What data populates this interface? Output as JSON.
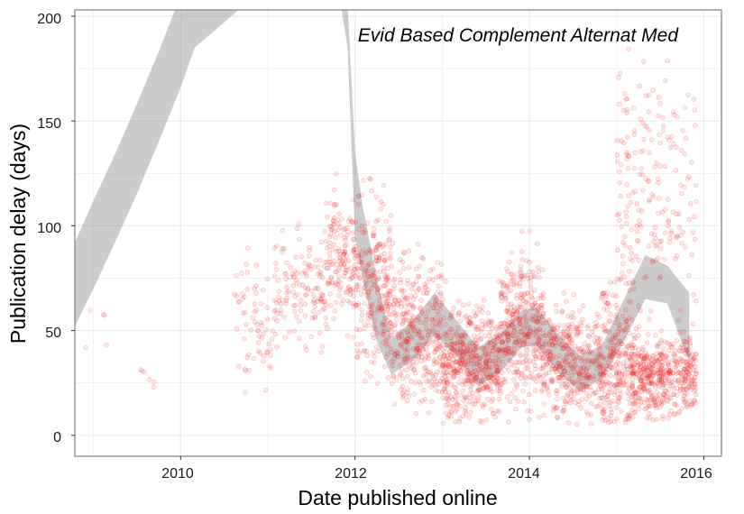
{
  "chart_data": {
    "type": "scatter",
    "title": "Evid Based Complement Alternat Med",
    "xlabel": "Date published online",
    "ylabel": "Publication delay (days)",
    "x_ticks": [
      "2010",
      "2012",
      "2014",
      "2016"
    ],
    "y_ticks": [
      "0",
      "50",
      "100",
      "150",
      "200"
    ],
    "xlim": [
      "2008-10-15",
      "2016-03-15"
    ],
    "ylim": [
      -10,
      203
    ],
    "grid": true,
    "colors": {
      "points": "#ee1111",
      "band": "#999999",
      "panel_border": "#7f7f7f",
      "grid": "#ebebeb"
    },
    "smooth_band": [
      {
        "x": "2008-10-15",
        "lo": 52,
        "hi": 92
      },
      {
        "x": "2009-01-01",
        "lo": 70,
        "hi": 112
      },
      {
        "x": "2009-04-01",
        "lo": 92,
        "hi": 134
      },
      {
        "x": "2009-07-01",
        "lo": 115,
        "hi": 158
      },
      {
        "x": "2009-10-01",
        "lo": 140,
        "hi": 183
      },
      {
        "x": "2010-01-01",
        "lo": 166,
        "hi": 210
      },
      {
        "x": "2010-03-01",
        "lo": 185,
        "hi": 230
      },
      {
        "x": "2011-09-15",
        "lo": 240,
        "hi": 260
      },
      {
        "x": "2011-12-01",
        "lo": 185,
        "hi": 205
      },
      {
        "x": "2012-01-01",
        "lo": 95,
        "hi": 135
      },
      {
        "x": "2012-02-01",
        "lo": 75,
        "hi": 110
      },
      {
        "x": "2012-04-01",
        "lo": 45,
        "hi": 75
      },
      {
        "x": "2012-06-01",
        "lo": 29,
        "hi": 46
      },
      {
        "x": "2012-09-01",
        "lo": 36,
        "hi": 55
      },
      {
        "x": "2012-12-01",
        "lo": 48,
        "hi": 68
      },
      {
        "x": "2013-03-01",
        "lo": 38,
        "hi": 55
      },
      {
        "x": "2013-06-01",
        "lo": 23,
        "hi": 42
      },
      {
        "x": "2013-09-01",
        "lo": 30,
        "hi": 48
      },
      {
        "x": "2013-12-01",
        "lo": 42,
        "hi": 60
      },
      {
        "x": "2014-02-01",
        "lo": 43,
        "hi": 61
      },
      {
        "x": "2014-05-01",
        "lo": 30,
        "hi": 48
      },
      {
        "x": "2014-08-01",
        "lo": 21,
        "hi": 38
      },
      {
        "x": "2014-11-01",
        "lo": 27,
        "hi": 43
      },
      {
        "x": "2015-02-01",
        "lo": 45,
        "hi": 65
      },
      {
        "x": "2015-05-01",
        "lo": 65,
        "hi": 86
      },
      {
        "x": "2015-08-01",
        "lo": 63,
        "hi": 81
      },
      {
        "x": "2015-11-01",
        "lo": 35,
        "hi": 68
      }
    ],
    "point_clusters": [
      {
        "from": "2008-11-15",
        "to": "2009-04-01",
        "center": 45,
        "spread": 20,
        "count": 5
      },
      {
        "from": "2009-06-01",
        "to": "2009-10-01",
        "center": 28,
        "spread": 5,
        "count": 6
      },
      {
        "from": "2010-08-15",
        "to": "2011-02-01",
        "center": 55,
        "spread": 25,
        "count": 70
      },
      {
        "from": "2011-02-01",
        "to": "2011-09-01",
        "center": 70,
        "spread": 22,
        "count": 130
      },
      {
        "from": "2011-09-01",
        "to": "2012-01-01",
        "center": 85,
        "spread": 25,
        "count": 150
      },
      {
        "from": "2012-01-01",
        "to": "2012-06-01",
        "center": 70,
        "spread": 35,
        "count": 260
      },
      {
        "from": "2012-06-01",
        "to": "2013-01-01",
        "center": 50,
        "spread": 28,
        "count": 350
      },
      {
        "from": "2013-01-01",
        "to": "2013-09-01",
        "center": 35,
        "spread": 22,
        "count": 500
      },
      {
        "from": "2013-09-01",
        "to": "2014-03-01",
        "center": 50,
        "spread": 28,
        "count": 380
      },
      {
        "from": "2014-03-01",
        "to": "2014-11-01",
        "center": 35,
        "spread": 22,
        "count": 380
      },
      {
        "from": "2014-11-01",
        "to": "2015-03-01",
        "center": 35,
        "spread": 30,
        "count": 230
      },
      {
        "from": "2015-03-01",
        "to": "2015-12-01",
        "center": 28,
        "spread": 15,
        "count": 500
      },
      {
        "from": "2015-01-01",
        "to": "2015-12-01",
        "center": 110,
        "spread": 55,
        "count": 220
      }
    ]
  }
}
